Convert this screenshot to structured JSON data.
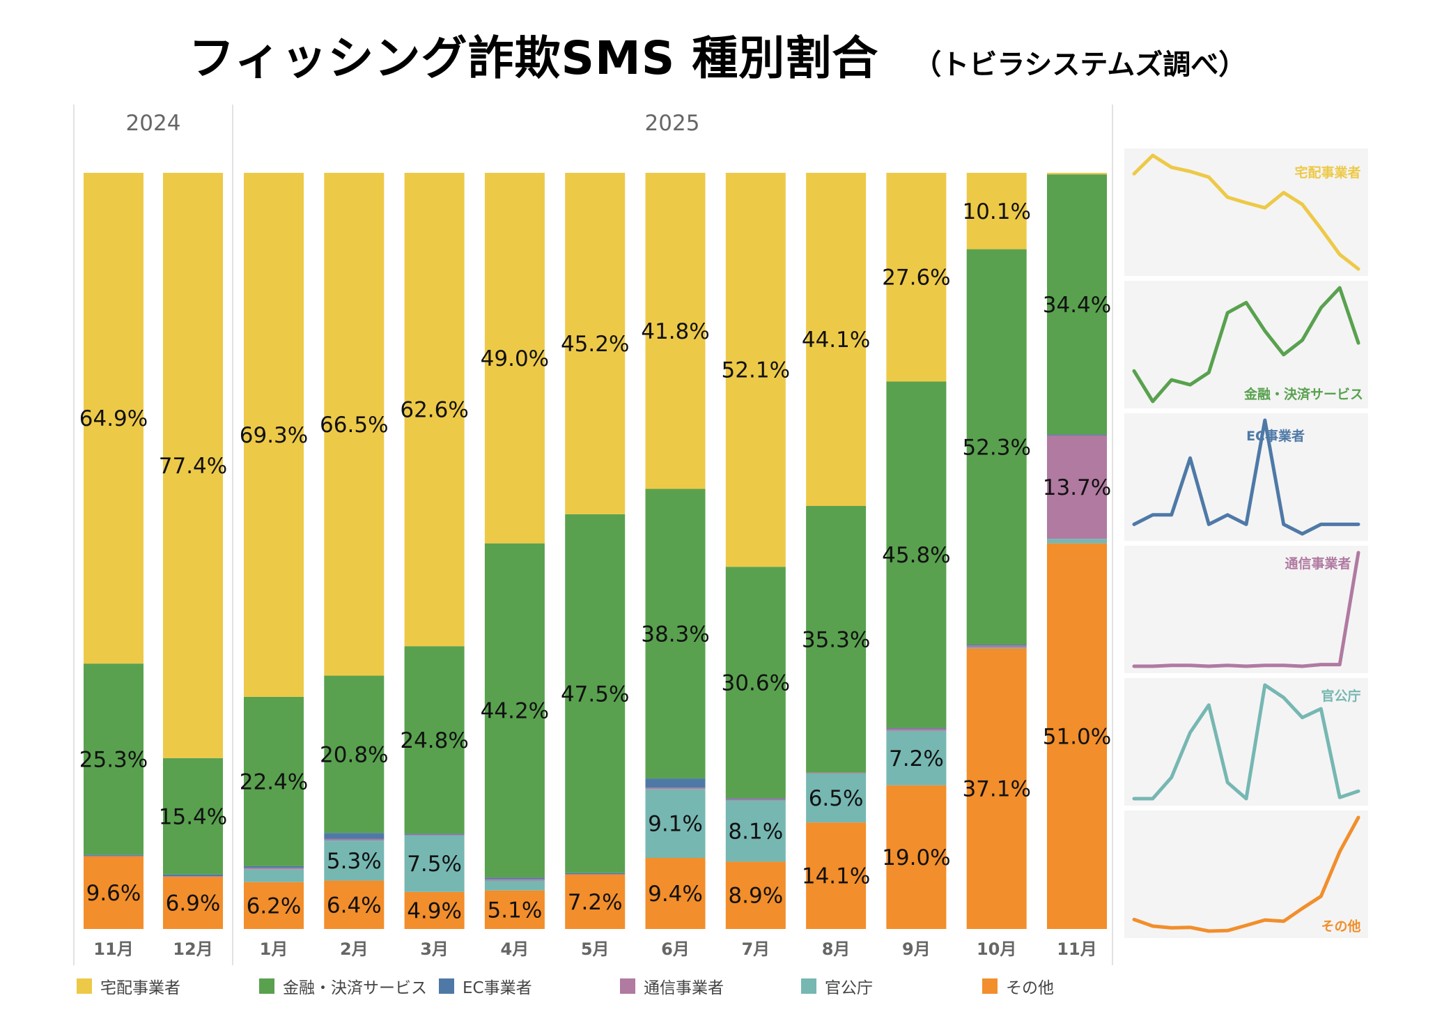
{
  "title": "フィッシング詐欺SMS 種別割合",
  "subtitle": "（トビラシステムズ調べ）",
  "chart_data": {
    "type": "bar",
    "stacked": true,
    "normalized": true,
    "year_groups": [
      {
        "label": "2024",
        "months": [
          "11月",
          "12月"
        ]
      },
      {
        "label": "2025",
        "months": [
          "1月",
          "2月",
          "3月",
          "4月",
          "5月",
          "6月",
          "7月",
          "8月",
          "9月",
          "10月",
          "11月"
        ]
      }
    ],
    "categories": [
      "11月",
      "12月",
      "1月",
      "2月",
      "3月",
      "4月",
      "5月",
      "6月",
      "7月",
      "8月",
      "9月",
      "10月",
      "11月"
    ],
    "unit": "%",
    "ylim": [
      0,
      100
    ],
    "legend_position": "bottom",
    "series": [
      {
        "name": "その他",
        "color": "#F28E2B",
        "values": [
          9.6,
          6.9,
          6.2,
          6.4,
          4.9,
          5.1,
          7.2,
          9.4,
          8.9,
          14.1,
          19.0,
          37.1,
          51.0
        ]
      },
      {
        "name": "官公庁",
        "color": "#76B7B2",
        "values": [
          0.0,
          0.0,
          1.7,
          5.3,
          7.5,
          1.3,
          0.0,
          9.1,
          8.1,
          6.5,
          7.2,
          0.1,
          0.6
        ]
      },
      {
        "name": "通信事業者",
        "color": "#B07AA1",
        "values": [
          0.1,
          0.1,
          0.2,
          0.2,
          0.1,
          0.2,
          0.1,
          0.2,
          0.2,
          0.1,
          0.3,
          0.3,
          13.7
        ]
      },
      {
        "name": "EC事業者",
        "color": "#4E79A7",
        "values": [
          0.1,
          0.2,
          0.2,
          0.8,
          0.1,
          0.2,
          0.1,
          1.2,
          0.1,
          0.0,
          0.1,
          0.1,
          0.1
        ]
      },
      {
        "name": "金融・決済サービス",
        "color": "#59A14F",
        "values": [
          25.3,
          15.4,
          22.4,
          20.8,
          24.8,
          44.2,
          47.5,
          38.3,
          30.6,
          35.3,
          45.8,
          52.3,
          34.4
        ]
      },
      {
        "name": "宅配事業者",
        "color": "#EDC948",
        "values": [
          64.9,
          77.4,
          69.3,
          66.5,
          62.6,
          49.0,
          45.2,
          41.8,
          52.1,
          44.1,
          27.6,
          10.1,
          0.2
        ]
      }
    ],
    "data_labels": [
      {
        "series": "宅配事業者",
        "labels": [
          "64.9%",
          "77.4%",
          "69.3%",
          "66.5%",
          "62.6%",
          "49.0%",
          "45.2%",
          "41.8%",
          "52.1%",
          "44.1%",
          "27.6%",
          "10.1%",
          ""
        ]
      },
      {
        "series": "金融・決済サービス",
        "labels": [
          "25.3%",
          "15.4%",
          "22.4%",
          "20.8%",
          "24.8%",
          "44.2%",
          "47.5%",
          "38.3%",
          "30.6%",
          "35.3%",
          "45.8%",
          "52.3%",
          "34.4%"
        ]
      },
      {
        "series": "通信事業者",
        "labels": [
          "",
          "",
          "",
          "",
          "",
          "",
          "",
          "",
          "",
          "",
          "",
          "",
          "13.7%"
        ]
      },
      {
        "series": "官公庁",
        "labels": [
          "",
          "",
          "",
          "5.3%",
          "7.5%",
          "",
          "",
          "9.1%",
          "8.1%",
          "6.5%",
          "7.2%",
          "",
          ""
        ]
      },
      {
        "series": "その他",
        "labels": [
          "9.6%",
          "6.9%",
          "6.2%",
          "6.4%",
          "4.9%",
          "5.1%",
          "7.2%",
          "9.4%",
          "8.9%",
          "14.1%",
          "19.0%",
          "37.1%",
          "51.0%"
        ]
      }
    ],
    "sparklines": [
      "宅配事業者",
      "金融・決済サービス",
      "EC事業者",
      "通信事業者",
      "官公庁",
      "その他"
    ]
  },
  "legend": [
    "宅配事業者",
    "金融・決済サービス",
    "EC事業者",
    "通信事業者",
    "官公庁",
    "その他"
  ],
  "colors": {
    "panel_bg": "#F4F4F4",
    "divider": "#D9D9D9",
    "axis_text": "#666666"
  }
}
